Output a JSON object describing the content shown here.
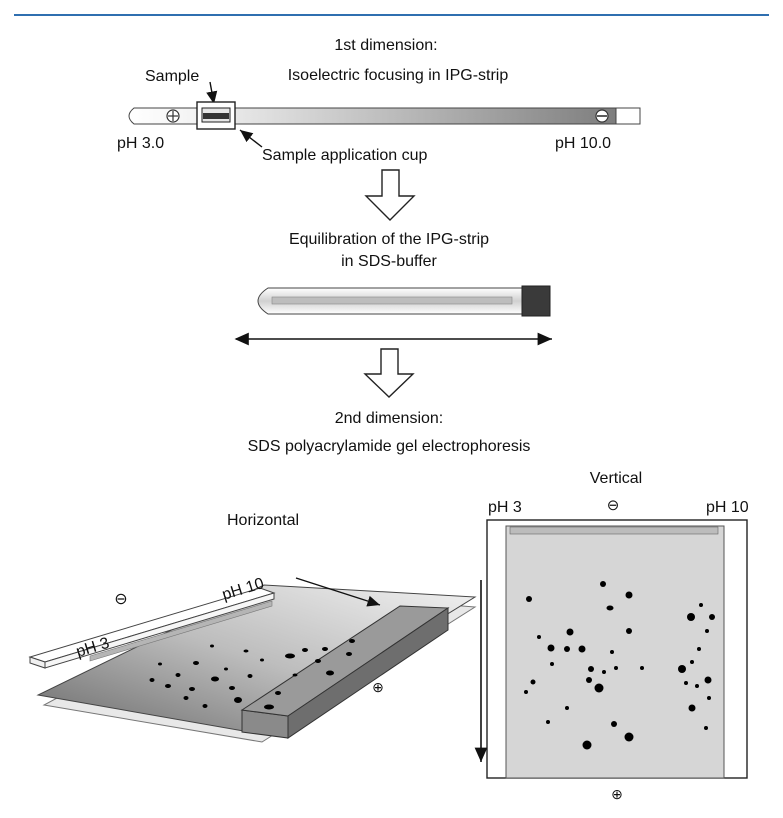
{
  "colors": {
    "top_rule": "#2f6fb0",
    "ink": "#111111",
    "gel_light": "#d6d6d6",
    "gel_dark": "#555555",
    "spot": "#000000"
  },
  "step1": {
    "heading": "1st dimension:",
    "subheading": "Isoelectric focusing in IPG-strip",
    "sample_label": "Sample",
    "cup_label": "Sample application cup",
    "ph_left": "pH 3.0",
    "ph_right": "pH 10.0",
    "anode_icon": "plus-circle-icon",
    "cathode_icon": "minus-circle-icon"
  },
  "step2": {
    "line1": "Equilibration of the IPG-strip",
    "line2": "in SDS-buffer"
  },
  "step3": {
    "heading": "2nd dimension:",
    "subheading": "SDS polyacrylamide gel electrophoresis"
  },
  "horizontal": {
    "title": "Horizontal",
    "ph_left": "pH 3",
    "ph_right": "pH 10"
  },
  "vertical": {
    "title": "Vertical",
    "ph_left": "pH 3",
    "ph_right": "pH 10"
  },
  "symbols": {
    "minus": "⊖",
    "plus": "⊕"
  }
}
